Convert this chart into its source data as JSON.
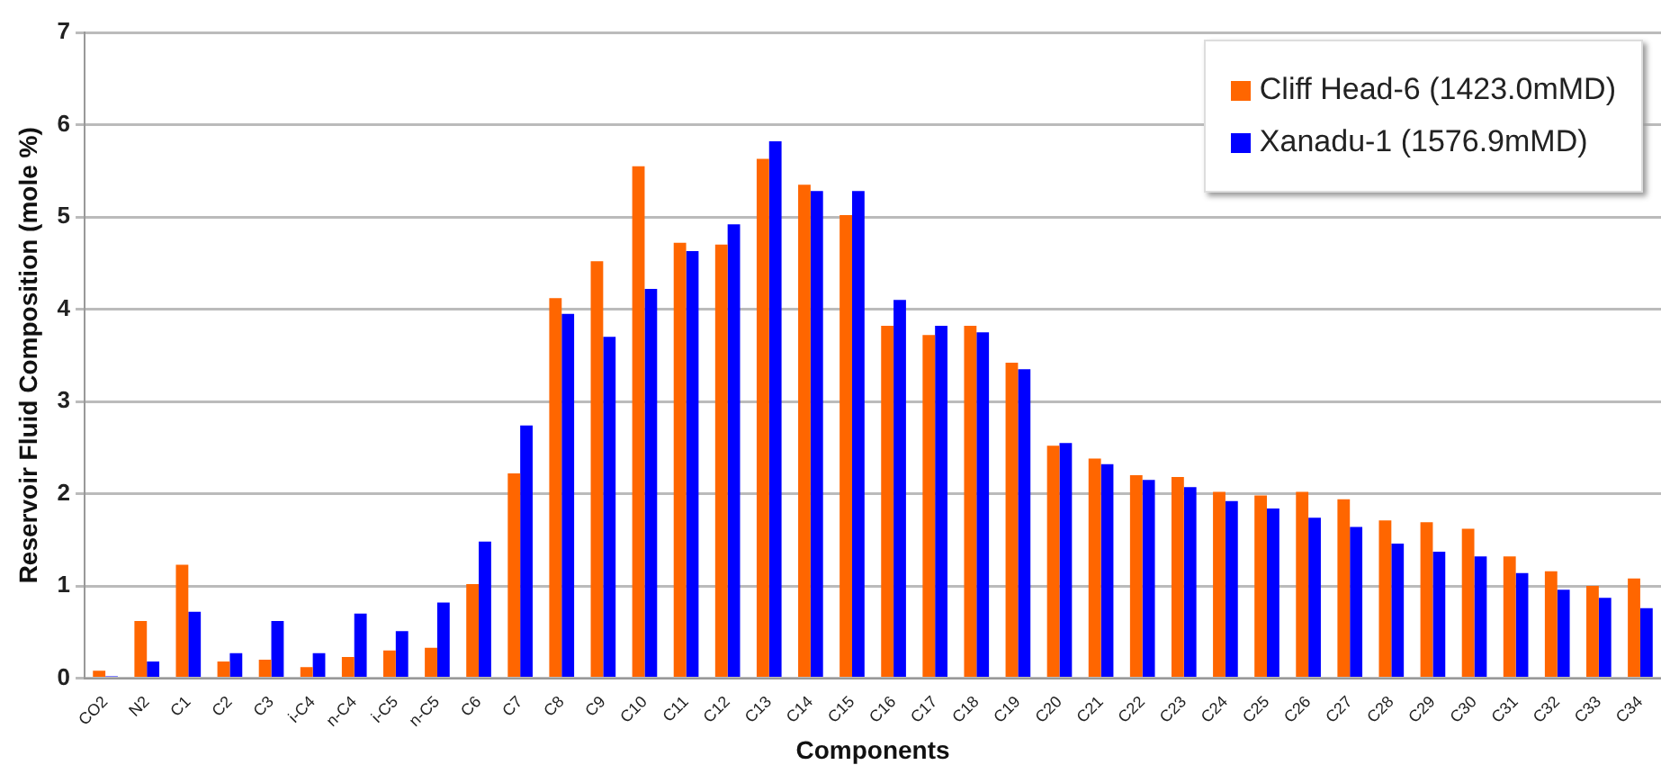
{
  "chart_data": {
    "type": "bar",
    "xlabel": "Components",
    "ylabel": "Reservoir Fluid Composition (mole %)",
    "categories": [
      "CO2",
      "N2",
      "C1",
      "C2",
      "C3",
      "i-C4",
      "n-C4",
      "i-C5",
      "n-C5",
      "C6",
      "C7",
      "C8",
      "C9",
      "C10",
      "C11",
      "C12",
      "C13",
      "C14",
      "C15",
      "C16",
      "C17",
      "C18",
      "C19",
      "C20",
      "C21",
      "C22",
      "C23",
      "C24",
      "C25",
      "C26",
      "C27",
      "C28",
      "C29",
      "C30",
      "C31",
      "C32",
      "C33",
      "C34"
    ],
    "series": [
      {
        "name": "Cliff Head-6 (1423.0mMD)",
        "color": "#ff6600",
        "values": [
          0.08,
          0.62,
          1.23,
          0.18,
          0.2,
          0.12,
          0.23,
          0.3,
          0.33,
          1.02,
          2.22,
          4.12,
          4.52,
          5.55,
          4.72,
          4.7,
          5.63,
          5.35,
          5.02,
          3.82,
          3.72,
          3.82,
          3.42,
          2.52,
          2.38,
          2.2,
          2.18,
          2.02,
          1.98,
          2.02,
          1.94,
          1.71,
          1.69,
          1.62,
          1.32,
          1.16,
          1.0,
          1.08
        ]
      },
      {
        "name": "Xanadu-1 (1576.9mMD)",
        "color": "#0000ff",
        "values": [
          0.02,
          0.18,
          0.72,
          0.27,
          0.62,
          0.27,
          0.7,
          0.51,
          0.82,
          1.48,
          2.74,
          3.95,
          3.7,
          4.22,
          4.63,
          4.92,
          5.82,
          5.28,
          5.28,
          4.1,
          3.82,
          3.75,
          3.35,
          2.55,
          2.32,
          2.15,
          2.07,
          1.92,
          1.84,
          1.74,
          1.64,
          1.46,
          1.37,
          1.32,
          1.14,
          0.96,
          0.87,
          0.76
        ]
      }
    ],
    "ylim": [
      0,
      7
    ],
    "yticks": [
      0,
      1,
      2,
      3,
      4,
      5,
      6,
      7
    ],
    "grid": "y",
    "legend": "top right"
  }
}
